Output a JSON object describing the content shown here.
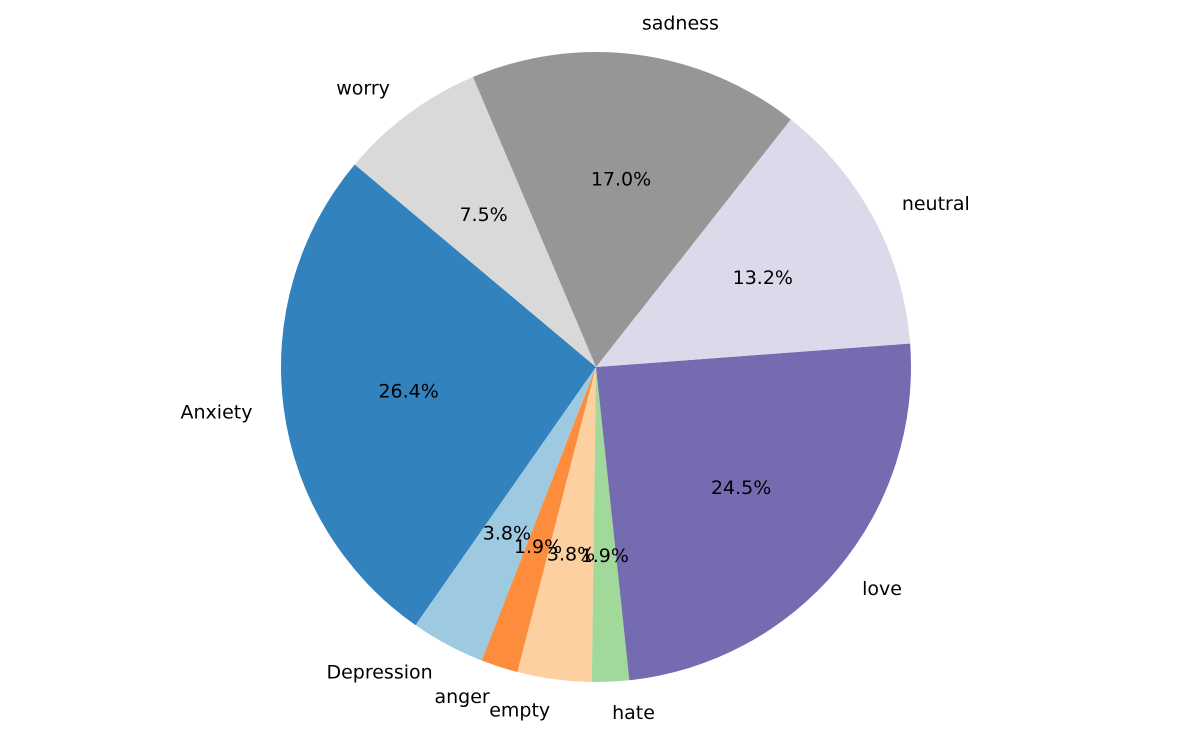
{
  "chart_data": {
    "type": "pie",
    "title": "",
    "labels": [
      "Anxiety",
      "Depression",
      "anger",
      "empty",
      "hate",
      "love",
      "neutral",
      "sadness",
      "worry"
    ],
    "values": [
      26.4,
      3.8,
      1.9,
      3.8,
      1.9,
      24.5,
      13.2,
      17.0,
      7.5
    ],
    "pct_labels": [
      "26.4%",
      "3.8%",
      "1.9%",
      "3.8%",
      "1.9%",
      "24.5%",
      "13.2%",
      "17.0%",
      "7.5%"
    ],
    "colors": [
      "#3182bd",
      "#9ecae1",
      "#fd8d3c",
      "#fdd0a2",
      "#a1d99b",
      "#756bb1",
      "#dadaeb",
      "#969696",
      "#d9d9d9"
    ],
    "start_angle_deg": 140,
    "direction": "counterclockwise",
    "legend": "none"
  }
}
